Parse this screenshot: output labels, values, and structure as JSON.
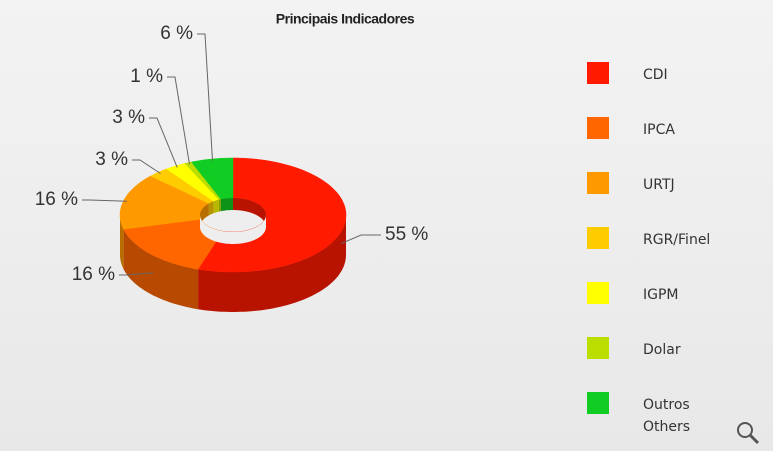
{
  "chart_data": {
    "type": "pie",
    "donut": true,
    "title": "Principais Indicadores",
    "categories": [
      "CDI",
      "IPCA",
      "URTJ",
      "RGR/Finel",
      "IGPM",
      "Dolar",
      "Outros Others"
    ],
    "values": [
      55,
      16,
      16,
      3,
      3,
      1,
      6
    ],
    "value_labels": [
      "55 %",
      "16 %",
      "16 %",
      "3 %",
      "3 %",
      "1 %",
      "6 %"
    ],
    "colors": [
      "#ff1a00",
      "#ff6600",
      "#ff9900",
      "#ffcc00",
      "#ffff00",
      "#bbdd00",
      "#11cc22"
    ],
    "legend": "right"
  }
}
